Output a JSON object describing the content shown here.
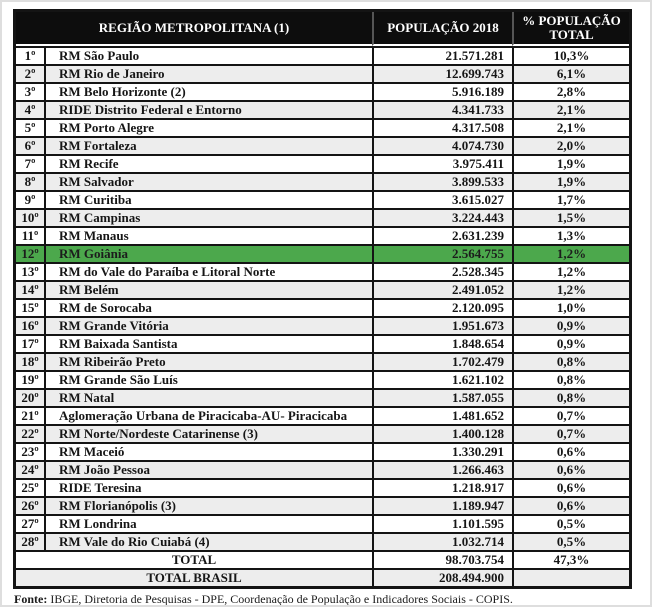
{
  "table": {
    "headers": {
      "region": "REGIÃO METROPOLITANA (1)",
      "population": "POPULAÇÃO 2018",
      "percent": "% POPULAÇÃO TOTAL"
    },
    "rows": [
      {
        "rank": "1º",
        "name": "RM São Paulo",
        "population": "21.571.281",
        "percent": "10,3%"
      },
      {
        "rank": "2º",
        "name": "RM Rio de Janeiro",
        "population": "12.699.743",
        "percent": "6,1%"
      },
      {
        "rank": "3º",
        "name": "RM Belo Horizonte  (2)",
        "population": "5.916.189",
        "percent": "2,8%"
      },
      {
        "rank": "4º",
        "name": "RIDE Distrito Federal e Entorno",
        "population": "4.341.733",
        "percent": "2,1%"
      },
      {
        "rank": "5º",
        "name": "RM Porto Alegre",
        "population": "4.317.508",
        "percent": "2,1%"
      },
      {
        "rank": "6º",
        "name": "RM Fortaleza",
        "population": "4.074.730",
        "percent": "2,0%"
      },
      {
        "rank": "7º",
        "name": "RM Recife",
        "population": "3.975.411",
        "percent": "1,9%"
      },
      {
        "rank": "8º",
        "name": "RM Salvador",
        "population": "3.899.533",
        "percent": "1,9%"
      },
      {
        "rank": "9º",
        "name": "RM Curitiba",
        "population": "3.615.027",
        "percent": "1,7%"
      },
      {
        "rank": "10º",
        "name": "RM Campinas",
        "population": "3.224.443",
        "percent": "1,5%"
      },
      {
        "rank": "11º",
        "name": "RM Manaus",
        "population": "2.631.239",
        "percent": "1,3%"
      },
      {
        "rank": "12º",
        "name": "RM Goiânia",
        "population": "2.564.755",
        "percent": "1,2%",
        "highlighted": true
      },
      {
        "rank": "13º",
        "name": "RM do Vale do Paraíba e Litoral Norte",
        "population": "2.528.345",
        "percent": "1,2%"
      },
      {
        "rank": "14º",
        "name": "RM Belém",
        "population": "2.491.052",
        "percent": "1,2%"
      },
      {
        "rank": "15º",
        "name": "RM de Sorocaba",
        "population": "2.120.095",
        "percent": "1,0%"
      },
      {
        "rank": "16º",
        "name": "RM Grande Vitória",
        "population": "1.951.673",
        "percent": "0,9%"
      },
      {
        "rank": "17º",
        "name": "RM Baixada Santista",
        "population": "1.848.654",
        "percent": "0,9%"
      },
      {
        "rank": "18º",
        "name": "RM Ribeirão Preto",
        "population": "1.702.479",
        "percent": "0,8%"
      },
      {
        "rank": "19º",
        "name": "RM Grande São Luís",
        "population": "1.621.102",
        "percent": "0,8%"
      },
      {
        "rank": "20º",
        "name": "RM Natal",
        "population": "1.587.055",
        "percent": "0,8%"
      },
      {
        "rank": "21º",
        "name": "Aglomeração Urbana de Piracicaba-AU- Piracicaba",
        "population": "1.481.652",
        "percent": "0,7%"
      },
      {
        "rank": "22º",
        "name": "RM Norte/Nordeste Catarinense (3)",
        "population": "1.400.128",
        "percent": "0,7%"
      },
      {
        "rank": "23º",
        "name": "RM Maceió",
        "population": "1.330.291",
        "percent": "0,6%"
      },
      {
        "rank": "24º",
        "name": "RM João Pessoa",
        "population": "1.266.463",
        "percent": "0,6%"
      },
      {
        "rank": "25º",
        "name": "RIDE Teresina",
        "population": "1.218.917",
        "percent": "0,6%"
      },
      {
        "rank": "26º",
        "name": "RM Florianópolis (3)",
        "population": "1.189.947",
        "percent": "0,6%"
      },
      {
        "rank": "27º",
        "name": "RM Londrina",
        "population": "1.101.595",
        "percent": "0,5%"
      },
      {
        "rank": "28º",
        "name": "RM Vale do Rio Cuiabá (4)",
        "population": "1.032.714",
        "percent": "0,5%"
      }
    ],
    "totals": [
      {
        "label": "TOTAL",
        "population": "98.703.754",
        "percent": "47,3%"
      },
      {
        "label": "TOTAL BRASIL",
        "population": "208.494.900",
        "percent": ""
      }
    ]
  },
  "footer": {
    "label": "Fonte:",
    "text": " IBGE, Diretoria de Pesquisas - DPE, Coordenação de População e Indicadores Sociais - COPIS."
  },
  "colors": {
    "header_bg": "#0d0d0d",
    "header_text": "#ffffff",
    "row_alt_bg": "#ededed",
    "highlight_bg": "#4ca84c",
    "border": "#141414"
  }
}
